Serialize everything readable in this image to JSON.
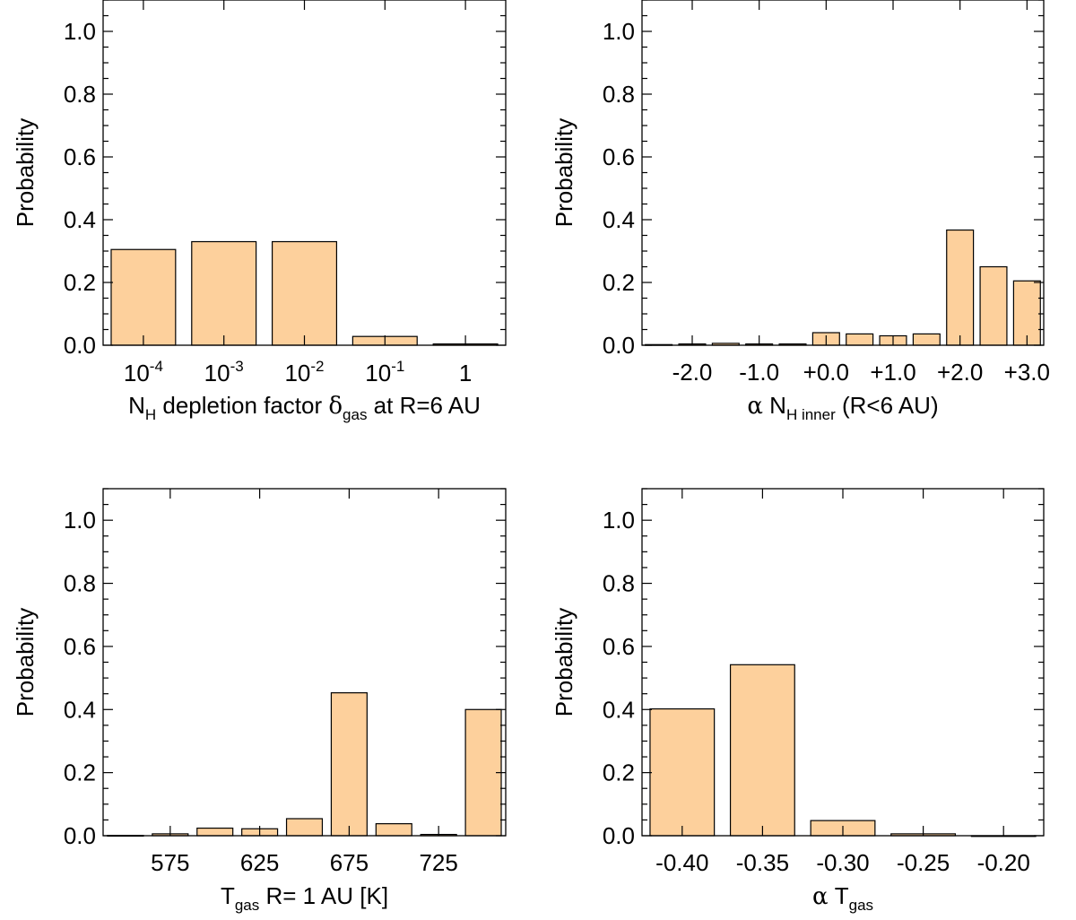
{
  "chart_data": [
    {
      "id": "nh-depletion",
      "type": "bar",
      "ylabel": "Probability",
      "ylim": [
        0,
        1.1
      ],
      "yticks": [
        "0.0",
        "0.2",
        "0.4",
        "0.6",
        "0.8",
        "1.0"
      ],
      "xlabel": {
        "main": "N",
        "sub": "H",
        "rest": " depletion factor ",
        "greek": "δ",
        "greek_sub": "gas",
        "tail": " at R=6 AU"
      },
      "xlim": [
        0.5,
        5.5
      ],
      "categories": [
        {
          "x": 1,
          "base": "10",
          "exp": "-4"
        },
        {
          "x": 2,
          "base": "10",
          "exp": "-3"
        },
        {
          "x": 3,
          "base": "10",
          "exp": "-2"
        },
        {
          "x": 4,
          "base": "10",
          "exp": "-1"
        },
        {
          "x": 5,
          "base": "1",
          "exp": ""
        }
      ],
      "bars": [
        {
          "x": 1,
          "w": 0.8,
          "value": 0.305
        },
        {
          "x": 2,
          "w": 0.8,
          "value": 0.33
        },
        {
          "x": 3,
          "w": 0.8,
          "value": 0.33
        },
        {
          "x": 4,
          "w": 0.8,
          "value": 0.028
        },
        {
          "x": 5,
          "w": 0.8,
          "value": 0.004
        }
      ],
      "grid": false
    },
    {
      "id": "alpha-nh-inner",
      "type": "bar",
      "ylabel": "Probability",
      "ylim": [
        0,
        1.1
      ],
      "yticks": [
        "0.0",
        "0.2",
        "0.4",
        "0.6",
        "0.8",
        "1.0"
      ],
      "xlabel": {
        "greek": "α",
        "main": " N",
        "sub": "H inner",
        "tail": " (R<6 AU)"
      },
      "xlim": [
        -2.75,
        3.25
      ],
      "xticks": [
        {
          "x": -2,
          "label": "-2.0"
        },
        {
          "x": -1,
          "label": "-1.0"
        },
        {
          "x": 0,
          "label": "+0.0"
        },
        {
          "x": 1,
          "label": "+1.0"
        },
        {
          "x": 2,
          "label": "+2.0"
        },
        {
          "x": 3,
          "label": "+3.0"
        }
      ],
      "bars": [
        {
          "x": -2.5,
          "w": 0.4,
          "value": 0.002
        },
        {
          "x": -2.0,
          "w": 0.4,
          "value": 0.004
        },
        {
          "x": -1.5,
          "w": 0.4,
          "value": 0.006
        },
        {
          "x": -1.0,
          "w": 0.4,
          "value": 0.004
        },
        {
          "x": -0.5,
          "w": 0.4,
          "value": 0.004
        },
        {
          "x": 0.0,
          "w": 0.4,
          "value": 0.04
        },
        {
          "x": 0.5,
          "w": 0.4,
          "value": 0.036
        },
        {
          "x": 1.0,
          "w": 0.4,
          "value": 0.03
        },
        {
          "x": 1.5,
          "w": 0.4,
          "value": 0.036
        },
        {
          "x": 2.0,
          "w": 0.4,
          "value": 0.367
        },
        {
          "x": 2.5,
          "w": 0.4,
          "value": 0.25
        },
        {
          "x": 3.0,
          "w": 0.4,
          "value": 0.205
        }
      ],
      "grid": false
    },
    {
      "id": "tgas",
      "type": "bar",
      "ylabel": "Probability",
      "ylim": [
        0,
        1.1
      ],
      "yticks": [
        "0.0",
        "0.2",
        "0.4",
        "0.6",
        "0.8",
        "1.0"
      ],
      "xlabel": {
        "main": "T",
        "sub": "gas",
        "tail": " R= 1 AU [K]"
      },
      "xlim": [
        537.5,
        762.5
      ],
      "xticks": [
        {
          "x": 575,
          "label": "575"
        },
        {
          "x": 625,
          "label": "625"
        },
        {
          "x": 675,
          "label": "675"
        },
        {
          "x": 725,
          "label": "725"
        }
      ],
      "bars": [
        {
          "x": 550,
          "w": 20,
          "value": 0.001
        },
        {
          "x": 575,
          "w": 20,
          "value": 0.006
        },
        {
          "x": 600,
          "w": 20,
          "value": 0.024
        },
        {
          "x": 625,
          "w": 20,
          "value": 0.022
        },
        {
          "x": 650,
          "w": 20,
          "value": 0.054
        },
        {
          "x": 675,
          "w": 20,
          "value": 0.453
        },
        {
          "x": 700,
          "w": 20,
          "value": 0.038
        },
        {
          "x": 725,
          "w": 20,
          "value": 0.004
        },
        {
          "x": 750,
          "w": 20,
          "value": 0.4
        }
      ],
      "grid": false
    },
    {
      "id": "alpha-tgas",
      "type": "bar",
      "ylabel": "Probability",
      "ylim": [
        0,
        1.1
      ],
      "yticks": [
        "0.0",
        "0.2",
        "0.4",
        "0.6",
        "0.8",
        "1.0"
      ],
      "xlabel": {
        "greek": "α",
        "main": " T",
        "sub": "gas",
        "tail": ""
      },
      "xlim": [
        -0.425,
        -0.175
      ],
      "xticks": [
        {
          "x": -0.4,
          "label": "-0.40"
        },
        {
          "x": -0.35,
          "label": "-0.35"
        },
        {
          "x": -0.3,
          "label": "-0.30"
        },
        {
          "x": -0.25,
          "label": "-0.25"
        },
        {
          "x": -0.2,
          "label": "-0.20"
        }
      ],
      "bars": [
        {
          "x": -0.4,
          "w": 0.04,
          "value": 0.402
        },
        {
          "x": -0.35,
          "w": 0.04,
          "value": 0.542
        },
        {
          "x": -0.3,
          "w": 0.04,
          "value": 0.048
        },
        {
          "x": -0.25,
          "w": 0.04,
          "value": 0.006
        },
        {
          "x": -0.2,
          "w": 0.04,
          "value": 0.0
        }
      ],
      "grid": false
    }
  ],
  "colors": {
    "bar_fill": "#fdd09c",
    "bar_edge": "#000000",
    "axes": "#000000",
    "background": "#ffffff"
  }
}
